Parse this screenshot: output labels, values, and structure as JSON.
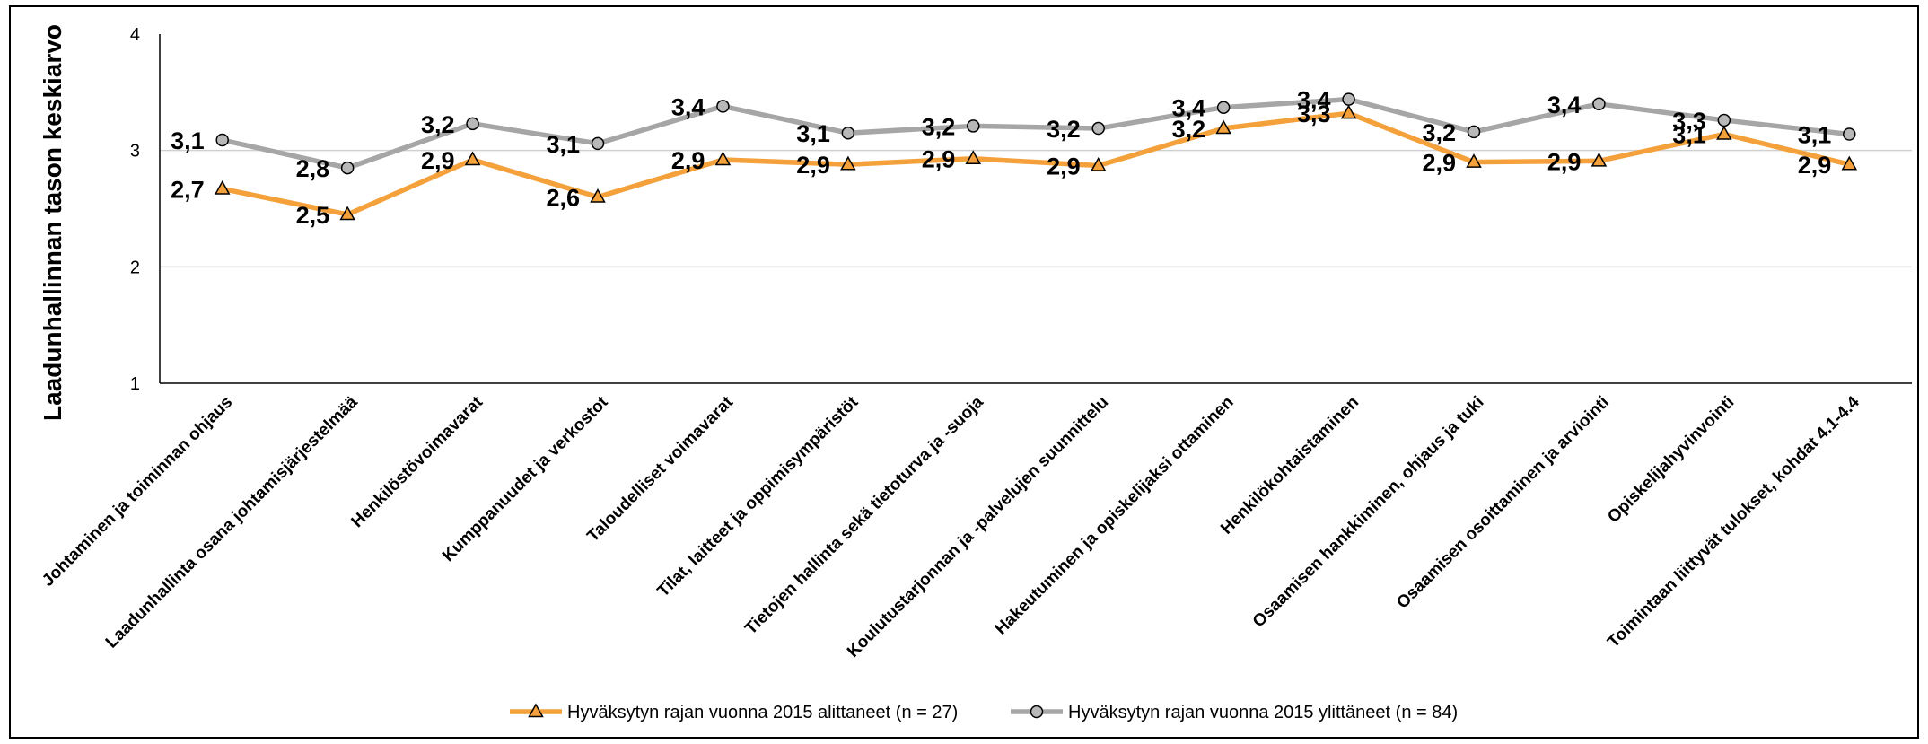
{
  "chart_data": {
    "type": "line",
    "ylabel": "Laadunhallinnan tason keskiarvo",
    "ylim": [
      1,
      4
    ],
    "yticks": [
      "1",
      "2",
      "3",
      "4"
    ],
    "grid": "horizontal",
    "legend_position": "bottom",
    "categories": [
      "Johtaminen ja toiminnan ohjaus",
      "Laadunhallinta osana johtamisjärjestelmää",
      "Henkilöstövoimavarat",
      "Kumppanuudet ja verkostot",
      "Taloudelliset voimavarat",
      "Tilat, laitteet ja oppimisympäristöt",
      "Tietojen hallinta sekä tietoturva ja -suoja",
      "Koulutustarjonnan ja -palvelujen suunnittelu",
      "Hakeutuminen ja opiskelijaksi ottaminen",
      "Henkilökohtaistaminen",
      "Osaamisen hankkiminen, ohjaus ja tuki",
      "Osaamisen osoittaminen ja arviointi",
      "Opiskelijahyvinvointi",
      "Toimintaan liittyvät tulokset, kohdat 4.1-4.4"
    ],
    "series": [
      {
        "name": "Hyväksytyn rajan vuonna 2015 alittaneet (n = 27)",
        "color": "#F4A13B",
        "marker": "triangle",
        "values": [
          2.67,
          2.45,
          2.92,
          2.6,
          2.92,
          2.88,
          2.93,
          2.87,
          3.19,
          3.32,
          2.9,
          2.91,
          3.14,
          2.88
        ],
        "labels": [
          "2,7",
          "2,5",
          "2,9",
          "2,6",
          "2,9",
          "2,9",
          "2,9",
          "2,9",
          "3,2",
          "3,3",
          "2,9",
          "2,9",
          "3,1",
          "2,9"
        ]
      },
      {
        "name": "Hyväksytyn rajan vuonna 2015 ylittäneet (n = 84)",
        "color": "#A6A6A6",
        "marker": "circle",
        "values": [
          3.09,
          2.85,
          3.23,
          3.06,
          3.38,
          3.15,
          3.21,
          3.19,
          3.37,
          3.44,
          3.16,
          3.4,
          3.26,
          3.14
        ],
        "labels": [
          "3,1",
          "2,8",
          "3,2",
          "3,1",
          "3,4",
          "3,1",
          "3,2",
          "3,2",
          "3,4",
          "3,4",
          "3,2",
          "3,4",
          "3,3",
          "3,1"
        ]
      }
    ]
  }
}
